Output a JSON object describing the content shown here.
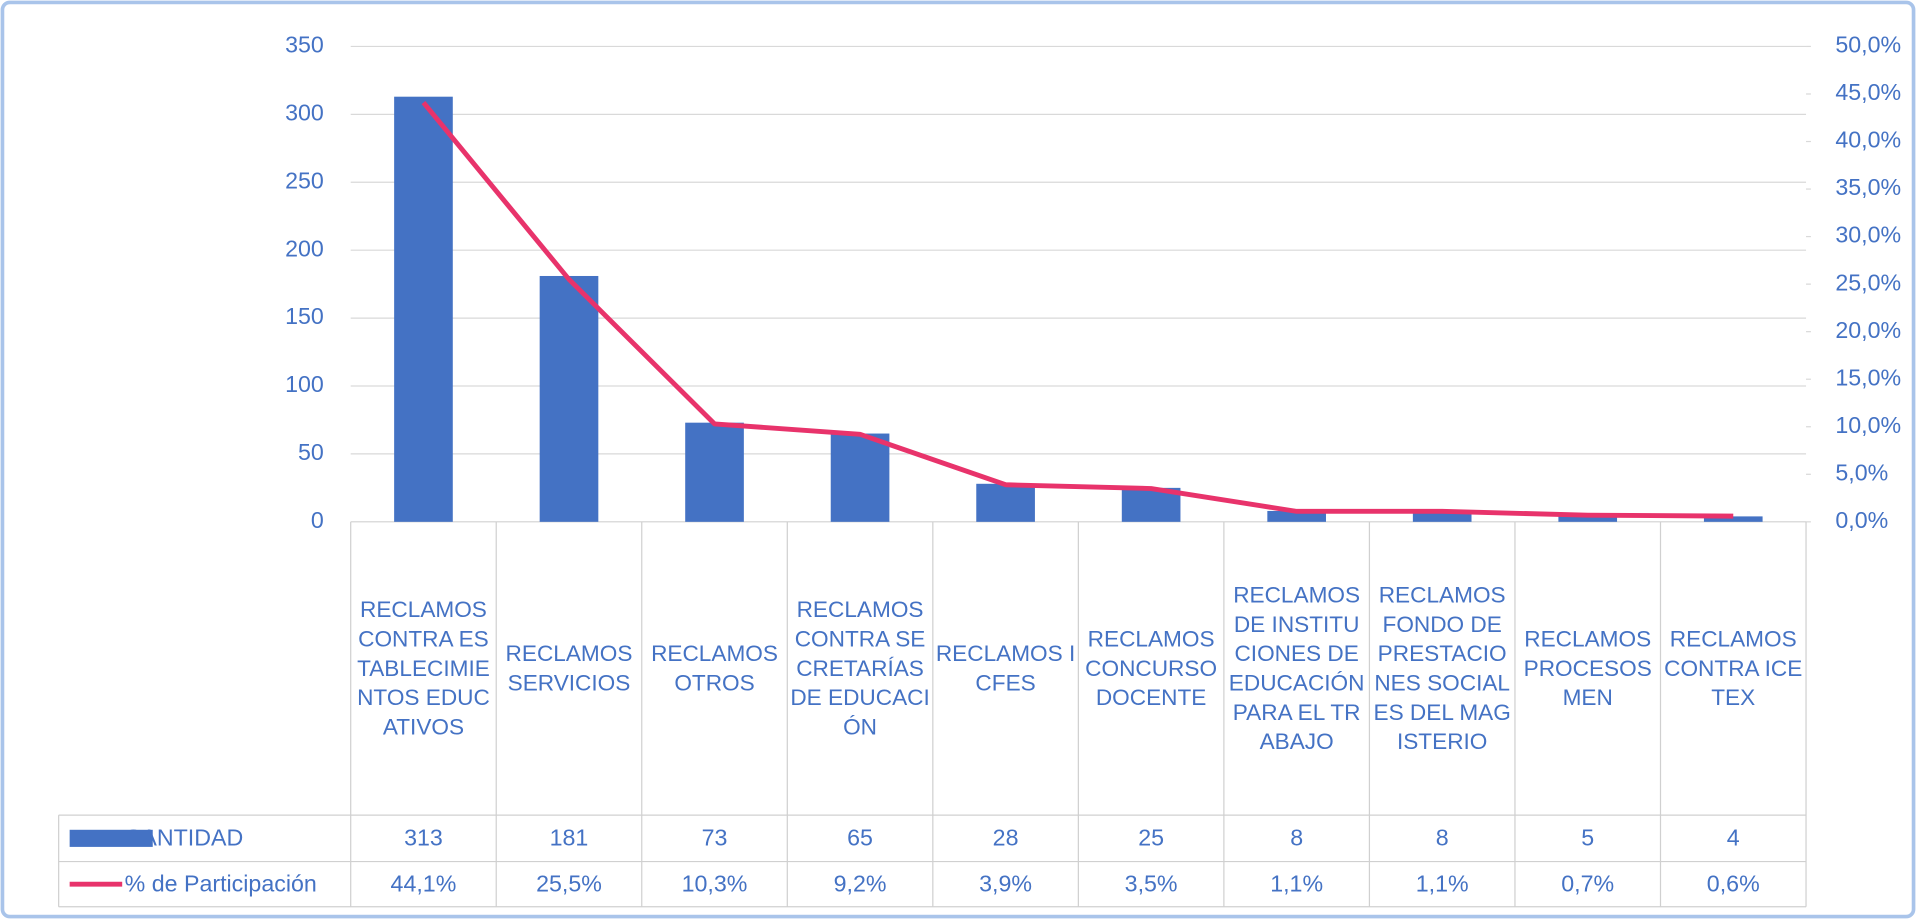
{
  "chart_data": {
    "type": "bar",
    "categories": [
      "RECLAMOS CONTRA ESTABLECIMIENTOS EDUCATIVOS",
      "RECLAMOS SERVICIOS",
      "RECLAMOS OTROS",
      "RECLAMOS CONTRA SECRETARÍAS DE EDUCACIÓN",
      "RECLAMOS ICFES",
      "RECLAMOS CONCURSO DOCENTE",
      "RECLAMOS DE INSTITUCIONES DE EDUCACIÓN PARA EL TRABAJO",
      "RECLAMOS FONDO DE PRESTACIONES SOCIALES DEL MAGISTERIO",
      "RECLAMOS PROCESOS MEN",
      "RECLAMOS CONTRA ICETEX"
    ],
    "series": [
      {
        "name": "CANTIDAD",
        "type": "bar",
        "color": "#4472c4",
        "values": [
          313,
          181,
          73,
          65,
          28,
          25,
          8,
          8,
          5,
          4
        ]
      },
      {
        "name": "% de Participación",
        "type": "line",
        "axis": "y2",
        "color": "#e8336b",
        "values": [
          44.1,
          25.5,
          10.3,
          9.2,
          3.9,
          3.5,
          1.1,
          1.1,
          0.7,
          0.6
        ],
        "value_labels": [
          "44,1%",
          "25,5%",
          "10,3%",
          "9,2%",
          "3,9%",
          "3,5%",
          "1,1%",
          "1,1%",
          "0,7%",
          "0,6%"
        ]
      }
    ],
    "ylim": [
      0,
      350
    ],
    "yticks": [
      0,
      50,
      100,
      150,
      200,
      250,
      300,
      350
    ],
    "y2lim": [
      0,
      50
    ],
    "y2ticks": [
      {
        "value": 0,
        "label": "0,0%"
      },
      {
        "value": 5,
        "label": "5,0%"
      },
      {
        "value": 10,
        "label": "10,0%"
      },
      {
        "value": 15,
        "label": "15,0%"
      },
      {
        "value": 20,
        "label": "20,0%"
      },
      {
        "value": 25,
        "label": "25,0%"
      },
      {
        "value": 30,
        "label": "30,0%"
      },
      {
        "value": 35,
        "label": "35,0%"
      },
      {
        "value": 40,
        "label": "40,0%"
      },
      {
        "value": 45,
        "label": "45,0%"
      },
      {
        "value": 50,
        "label": "50,0%"
      }
    ],
    "grid": true
  }
}
